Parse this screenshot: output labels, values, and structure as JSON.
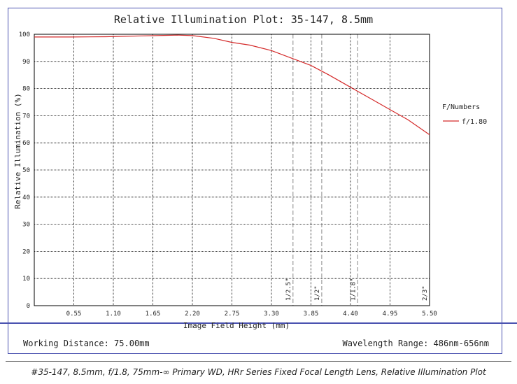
{
  "colors": {
    "frame": "#4a52b0",
    "series": "#d42a2a",
    "grid": "#000000",
    "marker": "#888888"
  },
  "chart_data": {
    "type": "line",
    "title": "Relative Illumination Plot: 35-147, 8.5mm",
    "xlabel": "Image Field Height (mm)",
    "ylabel": "Relative Illumination (%)",
    "xlim": [
      0,
      5.5
    ],
    "ylim": [
      0,
      100
    ],
    "x_ticks": [
      "0.55",
      "1.10",
      "1.65",
      "2.20",
      "2.75",
      "3.30",
      "3.85",
      "4.40",
      "4.95",
      "5.50"
    ],
    "y_ticks": [
      "0",
      "10",
      "20",
      "30",
      "40",
      "50",
      "60",
      "70",
      "80",
      "90",
      "100"
    ],
    "grid": true,
    "legend_title": "F/Numbers",
    "legend_position": "right",
    "series": [
      {
        "name": "f/1.80",
        "color": "#d42a2a",
        "x": [
          0,
          0.5,
          1.0,
          1.5,
          1.8,
          2.0,
          2.2,
          2.5,
          2.75,
          3.0,
          3.3,
          3.6,
          3.85,
          4.1,
          4.4,
          4.7,
          5.0,
          5.2,
          5.5
        ],
        "y": [
          99,
          99,
          99.1,
          99.4,
          99.6,
          99.7,
          99.5,
          98.5,
          97,
          96,
          94,
          91,
          88.5,
          85,
          80.5,
          76,
          71.5,
          68.5,
          63
        ]
      }
    ],
    "markers": [
      {
        "label": "1/2.5\"",
        "x": 3.6
      },
      {
        "label": "1/2\"",
        "x": 4.0
      },
      {
        "label": "1/1.8\"",
        "x": 4.5
      },
      {
        "label": "2/3\"",
        "x": 5.5
      }
    ]
  },
  "info": {
    "working_distance": "Working Distance: 75.00mm",
    "wavelength_range": "Wavelength Range: 486nm-656nm"
  },
  "caption": "#35-147, 8.5mm, f/1.8, 75mm-∞ Primary WD, HRr Series Fixed Focal Length Lens, Relative Illumination Plot"
}
